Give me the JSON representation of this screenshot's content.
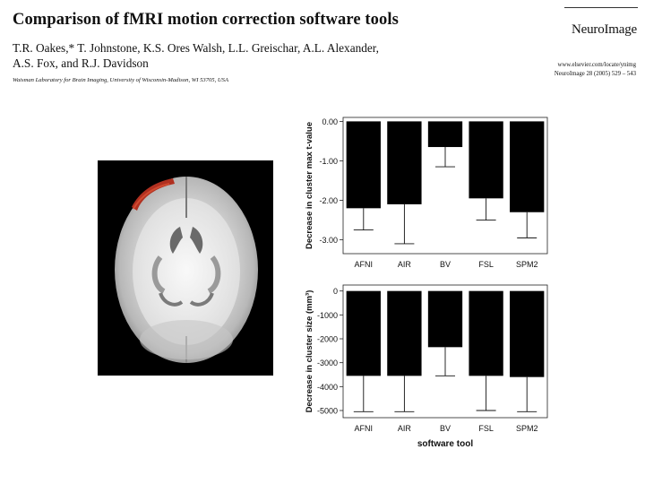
{
  "paper": {
    "title": "Comparison of fMRI motion correction software tools",
    "authors_line1": "T.R. Oakes,* T. Johnstone, K.S. Ores Walsh, L.L. Greischar, A.L. Alexander,",
    "authors_line2": "A.S. Fox, and R.J. Davidson",
    "affiliation": "Waisman Laboratory for Brain Imaging, University of Wisconsin-Madison, WI 53705, USA",
    "journal": "NeuroImage",
    "journal_url": "www.elsevier.com/locate/ynimg",
    "journal_citation": "NeuroImage 28 (2005) 529 – 543"
  },
  "figure": {
    "brain_image": "axial brain MRI slice with red activation cluster at left frontal region",
    "colors": {
      "bar": "#000000",
      "activation": "#b03020",
      "background": "#ffffff"
    }
  },
  "chart_data": [
    {
      "type": "bar",
      "categories": [
        "AFNI",
        "AIR",
        "BV",
        "FSL",
        "SPM2"
      ],
      "values": [
        -2.2,
        -2.1,
        -0.65,
        -1.95,
        -2.3
      ],
      "error_low": [
        -2.75,
        -3.1,
        -1.15,
        -2.5,
        -2.95
      ],
      "ylabel": "Decrease in cluster max t-value",
      "xlabel": "",
      "ylim": [
        -3.35,
        0.1
      ],
      "yticks": [
        0,
        -1,
        -2,
        -3
      ],
      "ytick_labels": [
        "0.00",
        "-1.00",
        "-2.00",
        "-3.00"
      ]
    },
    {
      "type": "bar",
      "categories": [
        "AFNI",
        "AIR",
        "BV",
        "FSL",
        "SPM2"
      ],
      "values": [
        -3550,
        -3550,
        -2350,
        -3550,
        -3600
      ],
      "error_low": [
        -5050,
        -5050,
        -3550,
        -5000,
        -5050
      ],
      "ylabel": "Decrease in cluster size (mm³)",
      "xlabel": "software tool",
      "ylim": [
        -5300,
        250
      ],
      "yticks": [
        0,
        -1000,
        -2000,
        -3000,
        -4000,
        -5000
      ],
      "ytick_labels": [
        "0",
        "-1000",
        "-2000",
        "-3000",
        "-4000",
        "-5000"
      ]
    }
  ]
}
